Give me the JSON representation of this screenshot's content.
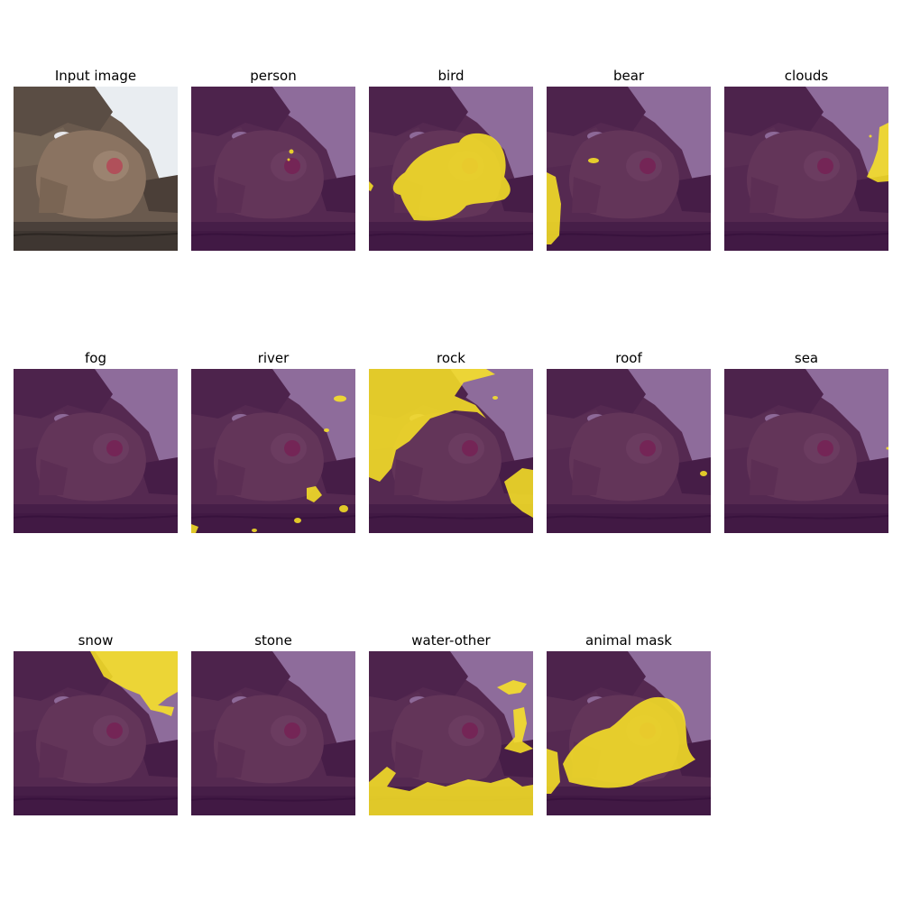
{
  "panels": [
    {
      "title": "Input image",
      "kind": "input"
    },
    {
      "title": "person",
      "kind": "mask",
      "mask": "person-mask"
    },
    {
      "title": "bird",
      "kind": "mask",
      "mask": "bird-mask"
    },
    {
      "title": "bear",
      "kind": "mask",
      "mask": "bear-mask"
    },
    {
      "title": "clouds",
      "kind": "mask",
      "mask": "clouds-mask"
    },
    {
      "title": "fog",
      "kind": "mask",
      "mask": "none"
    },
    {
      "title": "river",
      "kind": "mask",
      "mask": "river-mask"
    },
    {
      "title": "rock",
      "kind": "mask",
      "mask": "rock-mask"
    },
    {
      "title": "roof",
      "kind": "mask",
      "mask": "roof-mask"
    },
    {
      "title": "sea",
      "kind": "mask",
      "mask": "sea-mask"
    },
    {
      "title": "snow",
      "kind": "mask",
      "mask": "snow-mask"
    },
    {
      "title": "stone",
      "kind": "mask",
      "mask": "none"
    },
    {
      "title": "water-other",
      "kind": "mask",
      "mask": "water-mask"
    },
    {
      "title": "animal mask",
      "kind": "mask",
      "mask": "animal-mask"
    }
  ],
  "colors": {
    "overlay_background": "#440154",
    "overlay_foreground": "#fde725"
  }
}
